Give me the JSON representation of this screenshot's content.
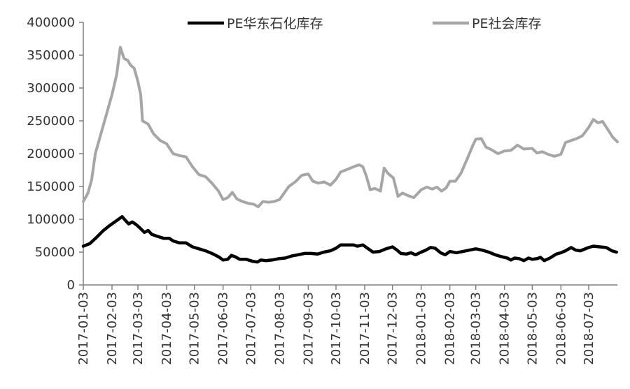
{
  "chart_data": {
    "type": "line",
    "title": "",
    "xlabel": "",
    "ylabel": "",
    "ylim": [
      0,
      400000
    ],
    "y_ticks": [
      0,
      50000,
      100000,
      150000,
      200000,
      250000,
      300000,
      350000,
      400000
    ],
    "x_range": [
      "2017-01-03",
      "2018-08-03"
    ],
    "x_ticks": [
      "2017-01-03",
      "2017-02-03",
      "2017-03-03",
      "2017-04-03",
      "2017-05-03",
      "2017-06-03",
      "2017-07-03",
      "2017-08-03",
      "2017-09-03",
      "2017-10-03",
      "2017-11-03",
      "2017-12-03",
      "2018-01-03",
      "2018-02-03",
      "2018-03-03",
      "2018-04-03",
      "2018-05-03",
      "2018-06-03",
      "2018-07-03"
    ],
    "grid": false,
    "legend_position": "top",
    "series": [
      {
        "name": "PE华东石化库存",
        "color": "#000000",
        "points": [
          [
            "2017-01-03",
            59000
          ],
          [
            "2017-01-10",
            63000
          ],
          [
            "2017-01-17",
            72000
          ],
          [
            "2017-01-24",
            82000
          ],
          [
            "2017-01-31",
            90000
          ],
          [
            "2017-02-07",
            97000
          ],
          [
            "2017-02-14",
            104000
          ],
          [
            "2017-02-17",
            99000
          ],
          [
            "2017-02-21",
            93000
          ],
          [
            "2017-02-25",
            96000
          ],
          [
            "2017-03-01",
            92000
          ],
          [
            "2017-03-05",
            87000
          ],
          [
            "2017-03-10",
            80000
          ],
          [
            "2017-03-14",
            83000
          ],
          [
            "2017-03-18",
            77000
          ],
          [
            "2017-03-24",
            74000
          ],
          [
            "2017-03-31",
            71000
          ],
          [
            "2017-04-06",
            71000
          ],
          [
            "2017-04-10",
            67000
          ],
          [
            "2017-04-17",
            64000
          ],
          [
            "2017-04-24",
            64000
          ],
          [
            "2017-05-01",
            58000
          ],
          [
            "2017-05-08",
            55000
          ],
          [
            "2017-05-15",
            52000
          ],
          [
            "2017-05-22",
            48000
          ],
          [
            "2017-05-29",
            43000
          ],
          [
            "2017-06-03",
            38000
          ],
          [
            "2017-06-08",
            39000
          ],
          [
            "2017-06-12",
            45000
          ],
          [
            "2017-06-16",
            43000
          ],
          [
            "2017-06-21",
            39000
          ],
          [
            "2017-06-28",
            39000
          ],
          [
            "2017-07-05",
            36000
          ],
          [
            "2017-07-10",
            35000
          ],
          [
            "2017-07-14",
            38000
          ],
          [
            "2017-07-19",
            37000
          ],
          [
            "2017-07-26",
            38000
          ],
          [
            "2017-08-02",
            40000
          ],
          [
            "2017-08-09",
            41000
          ],
          [
            "2017-08-16",
            44000
          ],
          [
            "2017-08-23",
            46000
          ],
          [
            "2017-08-30",
            48000
          ],
          [
            "2017-09-06",
            48000
          ],
          [
            "2017-09-13",
            47000
          ],
          [
            "2017-09-20",
            50000
          ],
          [
            "2017-09-27",
            52000
          ],
          [
            "2017-10-03",
            56000
          ],
          [
            "2017-10-08",
            61000
          ],
          [
            "2017-10-15",
            61000
          ],
          [
            "2017-10-22",
            61000
          ],
          [
            "2017-10-26",
            59000
          ],
          [
            "2017-11-01",
            61000
          ],
          [
            "2017-11-06",
            56000
          ],
          [
            "2017-11-12",
            50000
          ],
          [
            "2017-11-19",
            51000
          ],
          [
            "2017-11-26",
            55000
          ],
          [
            "2017-12-03",
            58000
          ],
          [
            "2017-12-08",
            53000
          ],
          [
            "2017-12-12",
            48000
          ],
          [
            "2017-12-18",
            47000
          ],
          [
            "2017-12-23",
            49000
          ],
          [
            "2017-12-28",
            46000
          ],
          [
            "2018-01-03",
            50000
          ],
          [
            "2018-01-08",
            53000
          ],
          [
            "2018-01-13",
            57000
          ],
          [
            "2018-01-18",
            56000
          ],
          [
            "2018-01-24",
            49000
          ],
          [
            "2018-01-29",
            46000
          ],
          [
            "2018-02-03",
            51000
          ],
          [
            "2018-02-10",
            49000
          ],
          [
            "2018-02-17",
            51000
          ],
          [
            "2018-02-24",
            53000
          ],
          [
            "2018-03-03",
            55000
          ],
          [
            "2018-03-10",
            53000
          ],
          [
            "2018-03-17",
            50000
          ],
          [
            "2018-03-24",
            46000
          ],
          [
            "2018-03-31",
            43000
          ],
          [
            "2018-04-06",
            41000
          ],
          [
            "2018-04-10",
            38000
          ],
          [
            "2018-04-14",
            41000
          ],
          [
            "2018-04-19",
            40000
          ],
          [
            "2018-04-24",
            37000
          ],
          [
            "2018-04-29",
            41000
          ],
          [
            "2018-05-03",
            39000
          ],
          [
            "2018-05-08",
            40000
          ],
          [
            "2018-05-12",
            42000
          ],
          [
            "2018-05-16",
            37000
          ],
          [
            "2018-05-22",
            41000
          ],
          [
            "2018-05-29",
            47000
          ],
          [
            "2018-06-03",
            49000
          ],
          [
            "2018-06-08",
            52000
          ],
          [
            "2018-06-14",
            57000
          ],
          [
            "2018-06-19",
            53000
          ],
          [
            "2018-06-24",
            52000
          ],
          [
            "2018-07-03",
            57000
          ],
          [
            "2018-07-08",
            59000
          ],
          [
            "2018-07-15",
            58000
          ],
          [
            "2018-07-22",
            57000
          ],
          [
            "2018-07-28",
            52000
          ],
          [
            "2018-08-02",
            50000
          ]
        ]
      },
      {
        "name": "PE社会库存",
        "color": "#a6a6a6",
        "points": [
          [
            "2017-01-03",
            127000
          ],
          [
            "2017-01-08",
            140000
          ],
          [
            "2017-01-12",
            160000
          ],
          [
            "2017-01-16",
            200000
          ],
          [
            "2017-01-22",
            230000
          ],
          [
            "2017-01-28",
            260000
          ],
          [
            "2017-02-03",
            290000
          ],
          [
            "2017-02-08",
            320000
          ],
          [
            "2017-02-12",
            362000
          ],
          [
            "2017-02-16",
            345000
          ],
          [
            "2017-02-20",
            342000
          ],
          [
            "2017-02-23",
            335000
          ],
          [
            "2017-02-27",
            330000
          ],
          [
            "2017-03-03",
            310000
          ],
          [
            "2017-03-06",
            290000
          ],
          [
            "2017-03-08",
            250000
          ],
          [
            "2017-03-14",
            245000
          ],
          [
            "2017-03-20",
            230000
          ],
          [
            "2017-03-27",
            220000
          ],
          [
            "2017-04-03",
            215000
          ],
          [
            "2017-04-10",
            200000
          ],
          [
            "2017-04-17",
            197000
          ],
          [
            "2017-04-24",
            195000
          ],
          [
            "2017-05-01",
            180000
          ],
          [
            "2017-05-08",
            168000
          ],
          [
            "2017-05-15",
            165000
          ],
          [
            "2017-05-22",
            155000
          ],
          [
            "2017-05-29",
            143000
          ],
          [
            "2017-06-03",
            130000
          ],
          [
            "2017-06-08",
            133000
          ],
          [
            "2017-06-13",
            141000
          ],
          [
            "2017-06-18",
            131000
          ],
          [
            "2017-06-24",
            127000
          ],
          [
            "2017-07-01",
            124000
          ],
          [
            "2017-07-06",
            123000
          ],
          [
            "2017-07-11",
            119000
          ],
          [
            "2017-07-16",
            127000
          ],
          [
            "2017-07-22",
            126000
          ],
          [
            "2017-07-28",
            127000
          ],
          [
            "2017-08-03",
            130000
          ],
          [
            "2017-08-08",
            140000
          ],
          [
            "2017-08-13",
            150000
          ],
          [
            "2017-08-20",
            157000
          ],
          [
            "2017-08-27",
            167000
          ],
          [
            "2017-09-03",
            169000
          ],
          [
            "2017-09-08",
            158000
          ],
          [
            "2017-09-14",
            155000
          ],
          [
            "2017-09-20",
            157000
          ],
          [
            "2017-09-27",
            152000
          ],
          [
            "2017-10-03",
            161000
          ],
          [
            "2017-10-08",
            172000
          ],
          [
            "2017-10-15",
            176000
          ],
          [
            "2017-10-22",
            180000
          ],
          [
            "2017-10-28",
            183000
          ],
          [
            "2017-11-01",
            180000
          ],
          [
            "2017-11-05",
            165000
          ],
          [
            "2017-11-09",
            145000
          ],
          [
            "2017-11-14",
            147000
          ],
          [
            "2017-11-20",
            143000
          ],
          [
            "2017-11-24",
            178000
          ],
          [
            "2017-11-28",
            170000
          ],
          [
            "2017-12-04",
            163000
          ],
          [
            "2017-12-09",
            135000
          ],
          [
            "2017-12-14",
            140000
          ],
          [
            "2017-12-20",
            136000
          ],
          [
            "2017-12-26",
            133000
          ],
          [
            "2018-01-03",
            145000
          ],
          [
            "2018-01-09",
            149000
          ],
          [
            "2018-01-15",
            146000
          ],
          [
            "2018-01-20",
            149000
          ],
          [
            "2018-01-25",
            143000
          ],
          [
            "2018-01-30",
            148000
          ],
          [
            "2018-02-03",
            158000
          ],
          [
            "2018-02-09",
            158000
          ],
          [
            "2018-02-15",
            170000
          ],
          [
            "2018-02-22",
            193000
          ],
          [
            "2018-02-28",
            213000
          ],
          [
            "2018-03-03",
            222000
          ],
          [
            "2018-03-09",
            223000
          ],
          [
            "2018-03-14",
            210000
          ],
          [
            "2018-03-20",
            206000
          ],
          [
            "2018-03-27",
            200000
          ],
          [
            "2018-04-03",
            204000
          ],
          [
            "2018-04-10",
            205000
          ],
          [
            "2018-04-17",
            213000
          ],
          [
            "2018-04-24",
            207000
          ],
          [
            "2018-05-03",
            208000
          ],
          [
            "2018-05-08",
            201000
          ],
          [
            "2018-05-14",
            203000
          ],
          [
            "2018-05-20",
            199000
          ],
          [
            "2018-05-27",
            196000
          ],
          [
            "2018-06-03",
            199000
          ],
          [
            "2018-06-08",
            217000
          ],
          [
            "2018-06-14",
            220000
          ],
          [
            "2018-06-20",
            223000
          ],
          [
            "2018-06-26",
            227000
          ],
          [
            "2018-07-03",
            240000
          ],
          [
            "2018-07-08",
            252000
          ],
          [
            "2018-07-13",
            247000
          ],
          [
            "2018-07-18",
            249000
          ],
          [
            "2018-07-24",
            236000
          ],
          [
            "2018-07-29",
            225000
          ],
          [
            "2018-08-03",
            218000
          ]
        ]
      }
    ]
  }
}
